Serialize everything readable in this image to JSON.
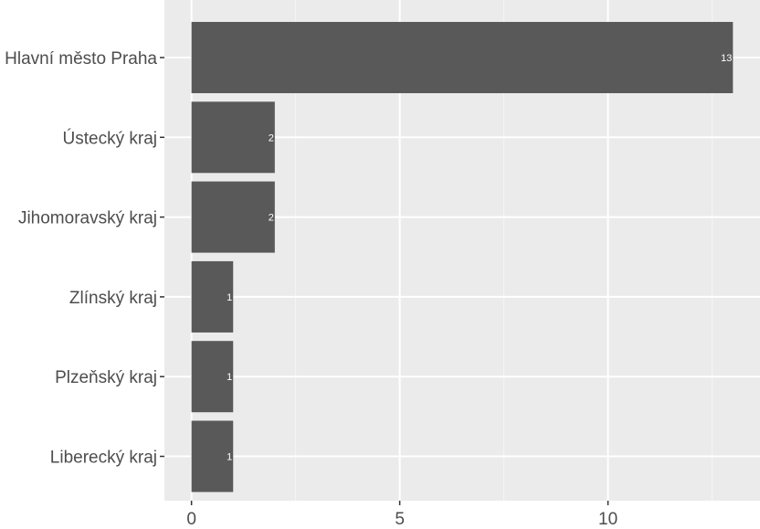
{
  "chart_data": {
    "type": "bar",
    "orientation": "horizontal",
    "title": "",
    "xlabel": "",
    "ylabel": "",
    "categories": [
      "Hlavní město Praha",
      "Ústecký kraj",
      "Jihomoravský kraj",
      "Zlínský kraj",
      "Plzeňský kraj",
      "Liberecký kraj"
    ],
    "values": [
      13,
      2,
      2,
      1,
      1,
      1
    ],
    "data_labels": [
      "13",
      "2",
      "2",
      "1",
      "1",
      "1"
    ],
    "xlim": [
      -0.65,
      13.65
    ],
    "x_ticks": [
      0,
      5,
      10
    ],
    "x_tick_labels": [
      "0",
      "5",
      "10"
    ],
    "grid": true,
    "colors": {
      "bar": "#595959",
      "panel": "#ebebeb",
      "grid_major": "#ffffff",
      "grid_minor": "#f5f5f5",
      "label_text": "#4d4d4d",
      "bar_label_text": "#ffffff"
    }
  }
}
